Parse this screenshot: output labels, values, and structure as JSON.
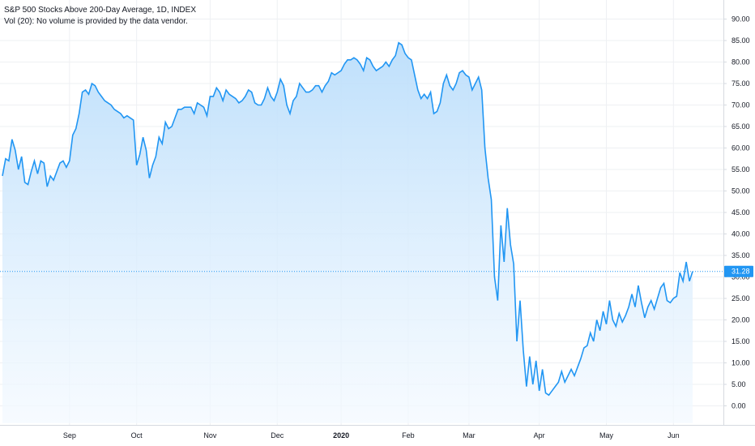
{
  "header": {
    "title": "S&P 500 Stocks Above 200-Day Average, 1D, INDEX",
    "volume_note": "Vol (20): No volume is provided by the data vendor."
  },
  "colors": {
    "line": "#2196f3",
    "fill_top": "#bbdefb",
    "fill_bottom": "#f3f9ff",
    "grid": "#eef0f3",
    "axis_border": "#d6dae0",
    "price_line": "#2196f3",
    "price_tag_bg": "#2196f3"
  },
  "chart_data": {
    "type": "area",
    "title": "S&P 500 Stocks Above 200-Day Average, 1D, INDEX",
    "xlabel": "",
    "ylabel": "",
    "ylim": [
      -4.0,
      91.0
    ],
    "grid": true,
    "last_value_label": "31.28",
    "y_ticks": [
      "0.00",
      "5.00",
      "10.00",
      "15.00",
      "20.00",
      "25.00",
      "30.00",
      "35.00",
      "40.00",
      "45.00",
      "50.00",
      "55.00",
      "60.00",
      "65.00",
      "70.00",
      "75.00",
      "80.00",
      "85.00",
      "90.00"
    ],
    "x_ticks": [
      {
        "label": "Sep",
        "index": 21
      },
      {
        "label": "Oct",
        "index": 42
      },
      {
        "label": "Nov",
        "index": 65
      },
      {
        "label": "Dec",
        "index": 86
      },
      {
        "label": "2020",
        "index": 106,
        "bold": true
      },
      {
        "label": "Feb",
        "index": 127
      },
      {
        "label": "Mar",
        "index": 146
      },
      {
        "label": "Apr",
        "index": 168
      },
      {
        "label": "May",
        "index": 189
      },
      {
        "label": "Jun",
        "index": 210
      }
    ],
    "series": [
      {
        "values": [
          53.5,
          57.5,
          57.0,
          62.0,
          59.5,
          55.0,
          58.0,
          52.0,
          51.5,
          54.5,
          57.0,
          54.0,
          57.0,
          56.5,
          51.0,
          53.5,
          52.5,
          54.5,
          56.5,
          57.0,
          55.5,
          57.0,
          63.0,
          64.5,
          68.0,
          73.0,
          73.5,
          72.5,
          75.0,
          74.5,
          73.0,
          72.0,
          71.0,
          70.5,
          70.0,
          69.0,
          68.5,
          68.0,
          67.0,
          67.5,
          67.0,
          66.5,
          56.0,
          58.5,
          62.5,
          59.5,
          53.0,
          56.0,
          58.0,
          62.5,
          61.0,
          66.0,
          64.5,
          65.0,
          67.0,
          69.0,
          69.0,
          69.5,
          69.5,
          69.5,
          68.0,
          70.5,
          70.0,
          69.5,
          67.5,
          72.0,
          72.0,
          74.0,
          73.0,
          71.0,
          73.5,
          72.5,
          72.0,
          71.5,
          70.5,
          71.0,
          72.0,
          73.5,
          73.0,
          70.5,
          70.0,
          70.0,
          71.5,
          74.0,
          72.0,
          71.0,
          73.0,
          76.0,
          74.5,
          70.0,
          68.0,
          71.0,
          72.0,
          75.0,
          74.0,
          73.0,
          73.0,
          73.5,
          74.5,
          74.5,
          73.0,
          74.5,
          75.5,
          77.5,
          77.0,
          77.5,
          78.0,
          79.5,
          80.5,
          80.5,
          81.0,
          80.5,
          79.5,
          78.0,
          81.0,
          80.5,
          79.0,
          78.0,
          78.5,
          79.0,
          80.0,
          79.0,
          80.5,
          81.5,
          84.5,
          84.0,
          82.0,
          81.0,
          80.5,
          77.0,
          73.5,
          71.5,
          72.5,
          71.5,
          73.0,
          68.0,
          68.5,
          70.5,
          75.0,
          77.0,
          74.5,
          73.5,
          75.0,
          77.5,
          78.0,
          77.0,
          76.5,
          73.5,
          75.0,
          76.5,
          73.5,
          60.0,
          53.0,
          48.0,
          30.0,
          24.5,
          42.0,
          33.5,
          46.0,
          37.5,
          33.0,
          15.0,
          24.5,
          13.0,
          4.5,
          11.5,
          5.0,
          10.5,
          3.5,
          8.5,
          3.0,
          2.5,
          3.5,
          4.5,
          5.5,
          8.0,
          5.5,
          7.0,
          8.5,
          7.0,
          9.0,
          11.0,
          13.5,
          14.0,
          17.0,
          15.0,
          20.0,
          17.5,
          22.0,
          19.0,
          24.5,
          20.0,
          18.5,
          21.5,
          19.5,
          21.0,
          23.0,
          26.0,
          23.0,
          28.0,
          24.0,
          20.5,
          23.0,
          24.5,
          22.5,
          25.0,
          27.5,
          28.5,
          24.5,
          24.0,
          25.0,
          25.5,
          31.0,
          29.0,
          33.5,
          29.0,
          31.28
        ]
      }
    ]
  }
}
